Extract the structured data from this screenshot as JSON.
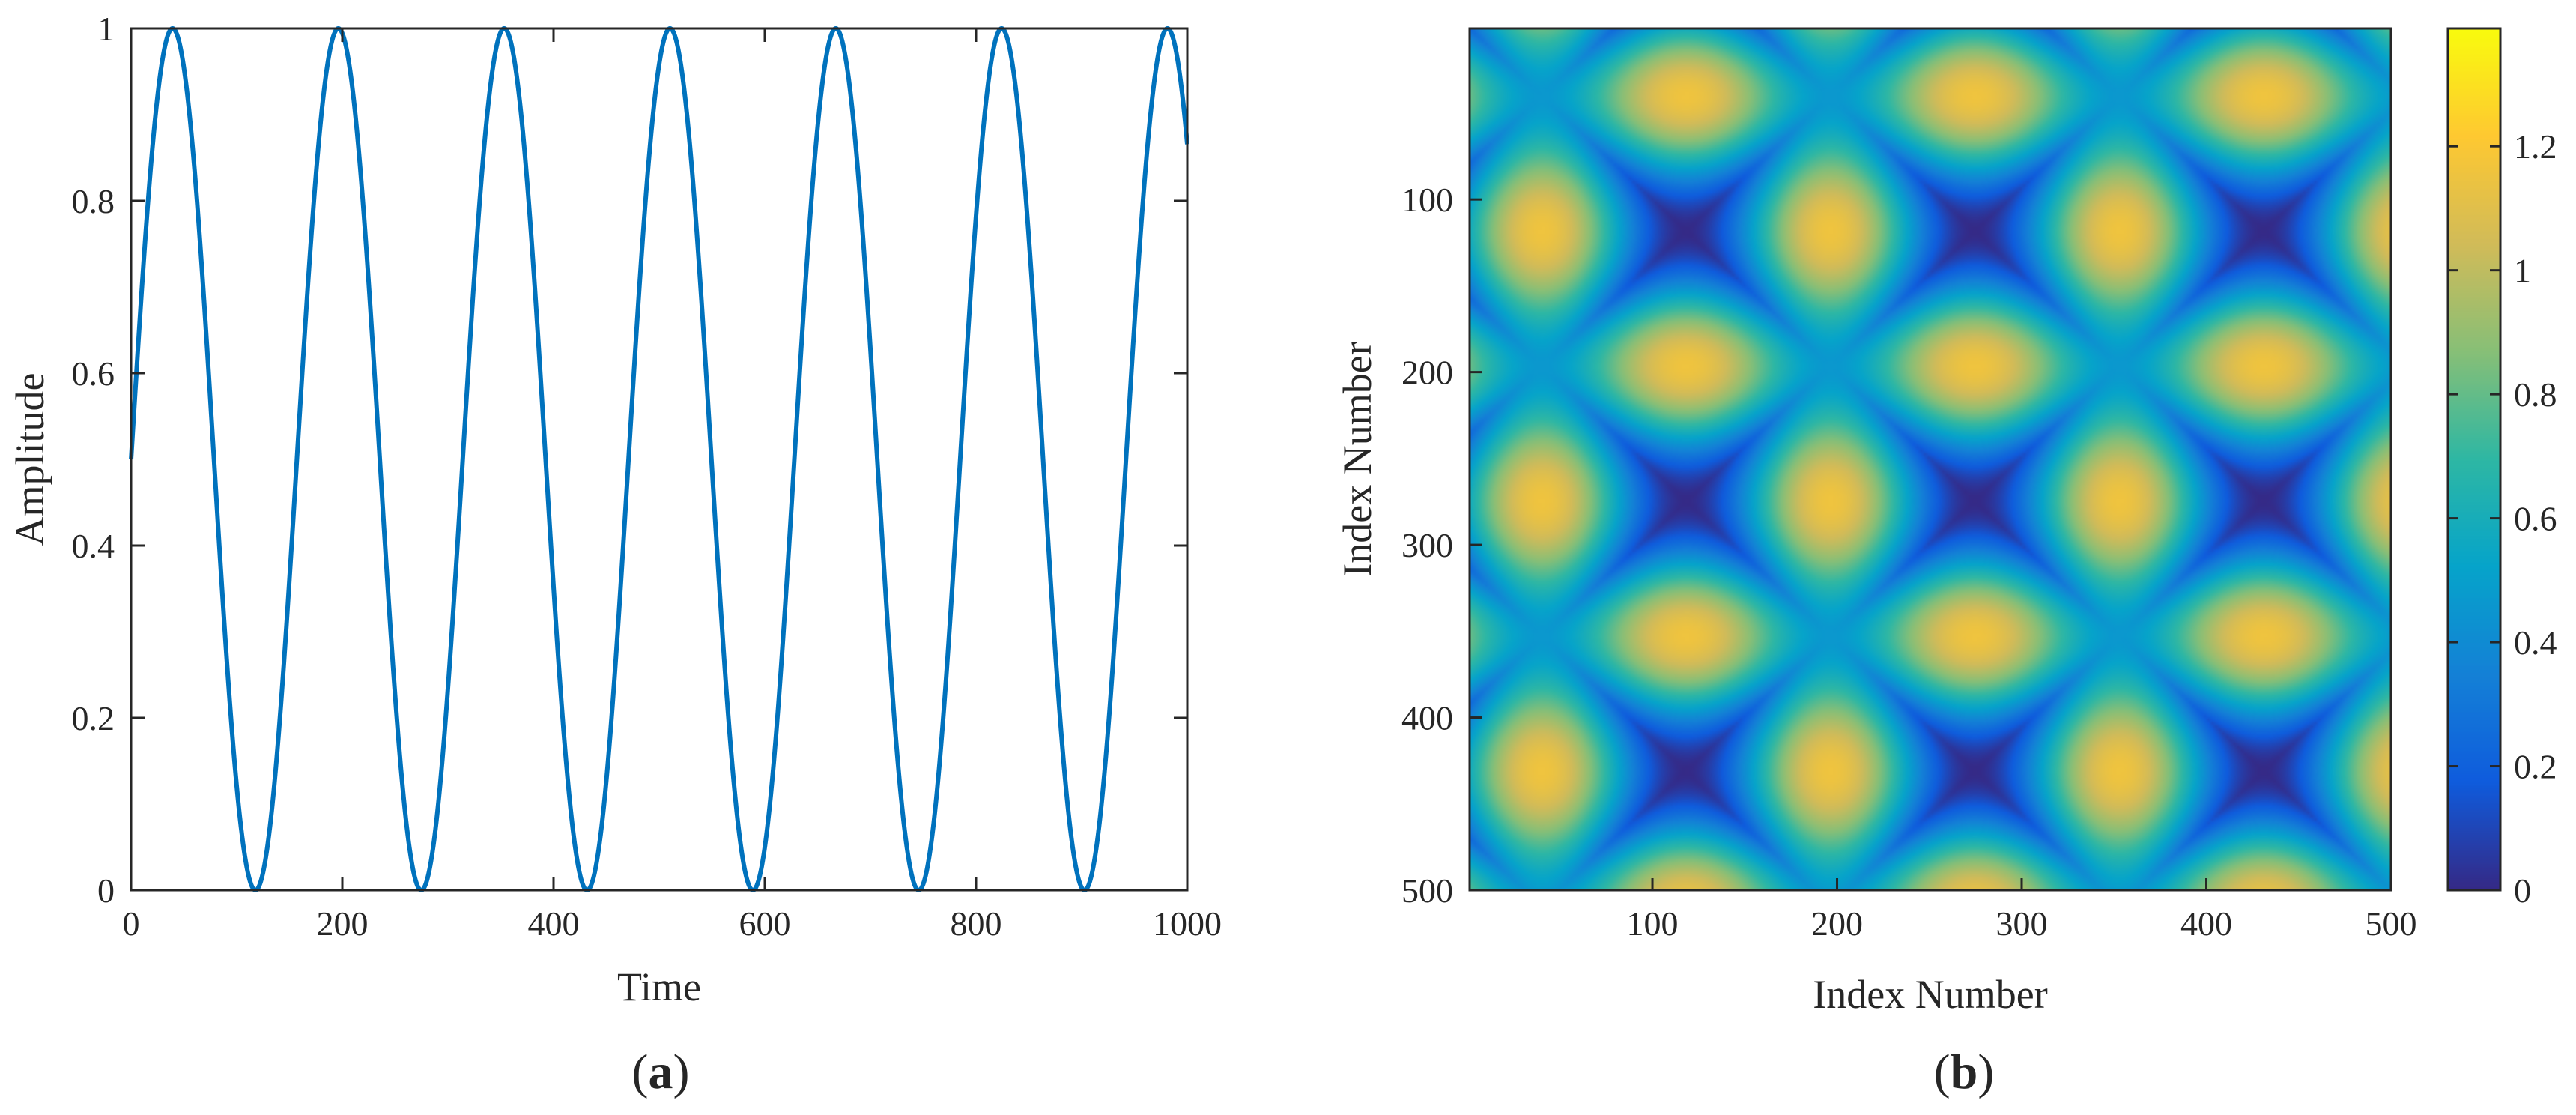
{
  "chart_data": [
    {
      "type": "line",
      "panel": "(a)",
      "panel_label_open": "(",
      "panel_label_letter": "a",
      "panel_label_close": ")",
      "xlabel": "Time",
      "ylabel": "Amplitude",
      "xlim": [
        0,
        1000
      ],
      "ylim": [
        0,
        1
      ],
      "xticks": [
        0,
        200,
        400,
        600,
        800,
        1000
      ],
      "yticks": [
        0,
        0.2,
        0.4,
        0.6,
        0.8,
        1
      ],
      "grid": false,
      "line_color": "#0072BD",
      "series": [
        {
          "function": "0.5 + 0.5*sin(2*pi*x/157 + pi*0)",
          "period": 157,
          "x_start": 0,
          "x_end": 1000,
          "samples": [
            [
              0,
              0.5
            ],
            [
              39,
              1.0
            ],
            [
              118,
              0.0
            ],
            [
              196,
              1.0
            ],
            [
              275,
              0.0
            ],
            [
              353,
              1.0
            ],
            [
              432,
              0.0
            ],
            [
              510,
              1.0
            ],
            [
              589,
              0.0
            ],
            [
              667,
              1.0
            ],
            [
              746,
              0.0
            ],
            [
              824,
              1.0
            ],
            [
              903,
              0.0
            ],
            [
              981,
              1.0
            ],
            [
              1000,
              0.87
            ]
          ]
        }
      ]
    },
    {
      "type": "heatmap",
      "panel": "(b)",
      "panel_label_open": "(",
      "panel_label_letter": "b",
      "panel_label_close": ")",
      "xlabel": "Index Number",
      "ylabel": "Index Number",
      "xlim": [
        1,
        500
      ],
      "ylim": [
        1,
        500
      ],
      "y_direction": "reversed",
      "xticks": [
        100,
        200,
        300,
        400,
        500
      ],
      "yticks": [
        100,
        200,
        300,
        400,
        500
      ],
      "colormap": "parula",
      "colorbar_ticks": [
        0,
        0.2,
        0.4,
        0.6,
        0.8,
        1,
        1.2
      ],
      "colorbar_range": [
        0,
        1.39
      ],
      "colormap_stops": [
        "#352a87",
        "#0f5cdd",
        "#1481d6",
        "#06a4ca",
        "#2eb7a4",
        "#87bf77",
        "#d1bb59",
        "#fec832",
        "#f9fb0e"
      ],
      "pattern": {
        "description_values": "peaks ~1.39 along bands i+j periodic, minima ~0 along dark diagonal bands",
        "peak_value": 1.39,
        "min_value": 0,
        "period_index": 157
      }
    }
  ]
}
